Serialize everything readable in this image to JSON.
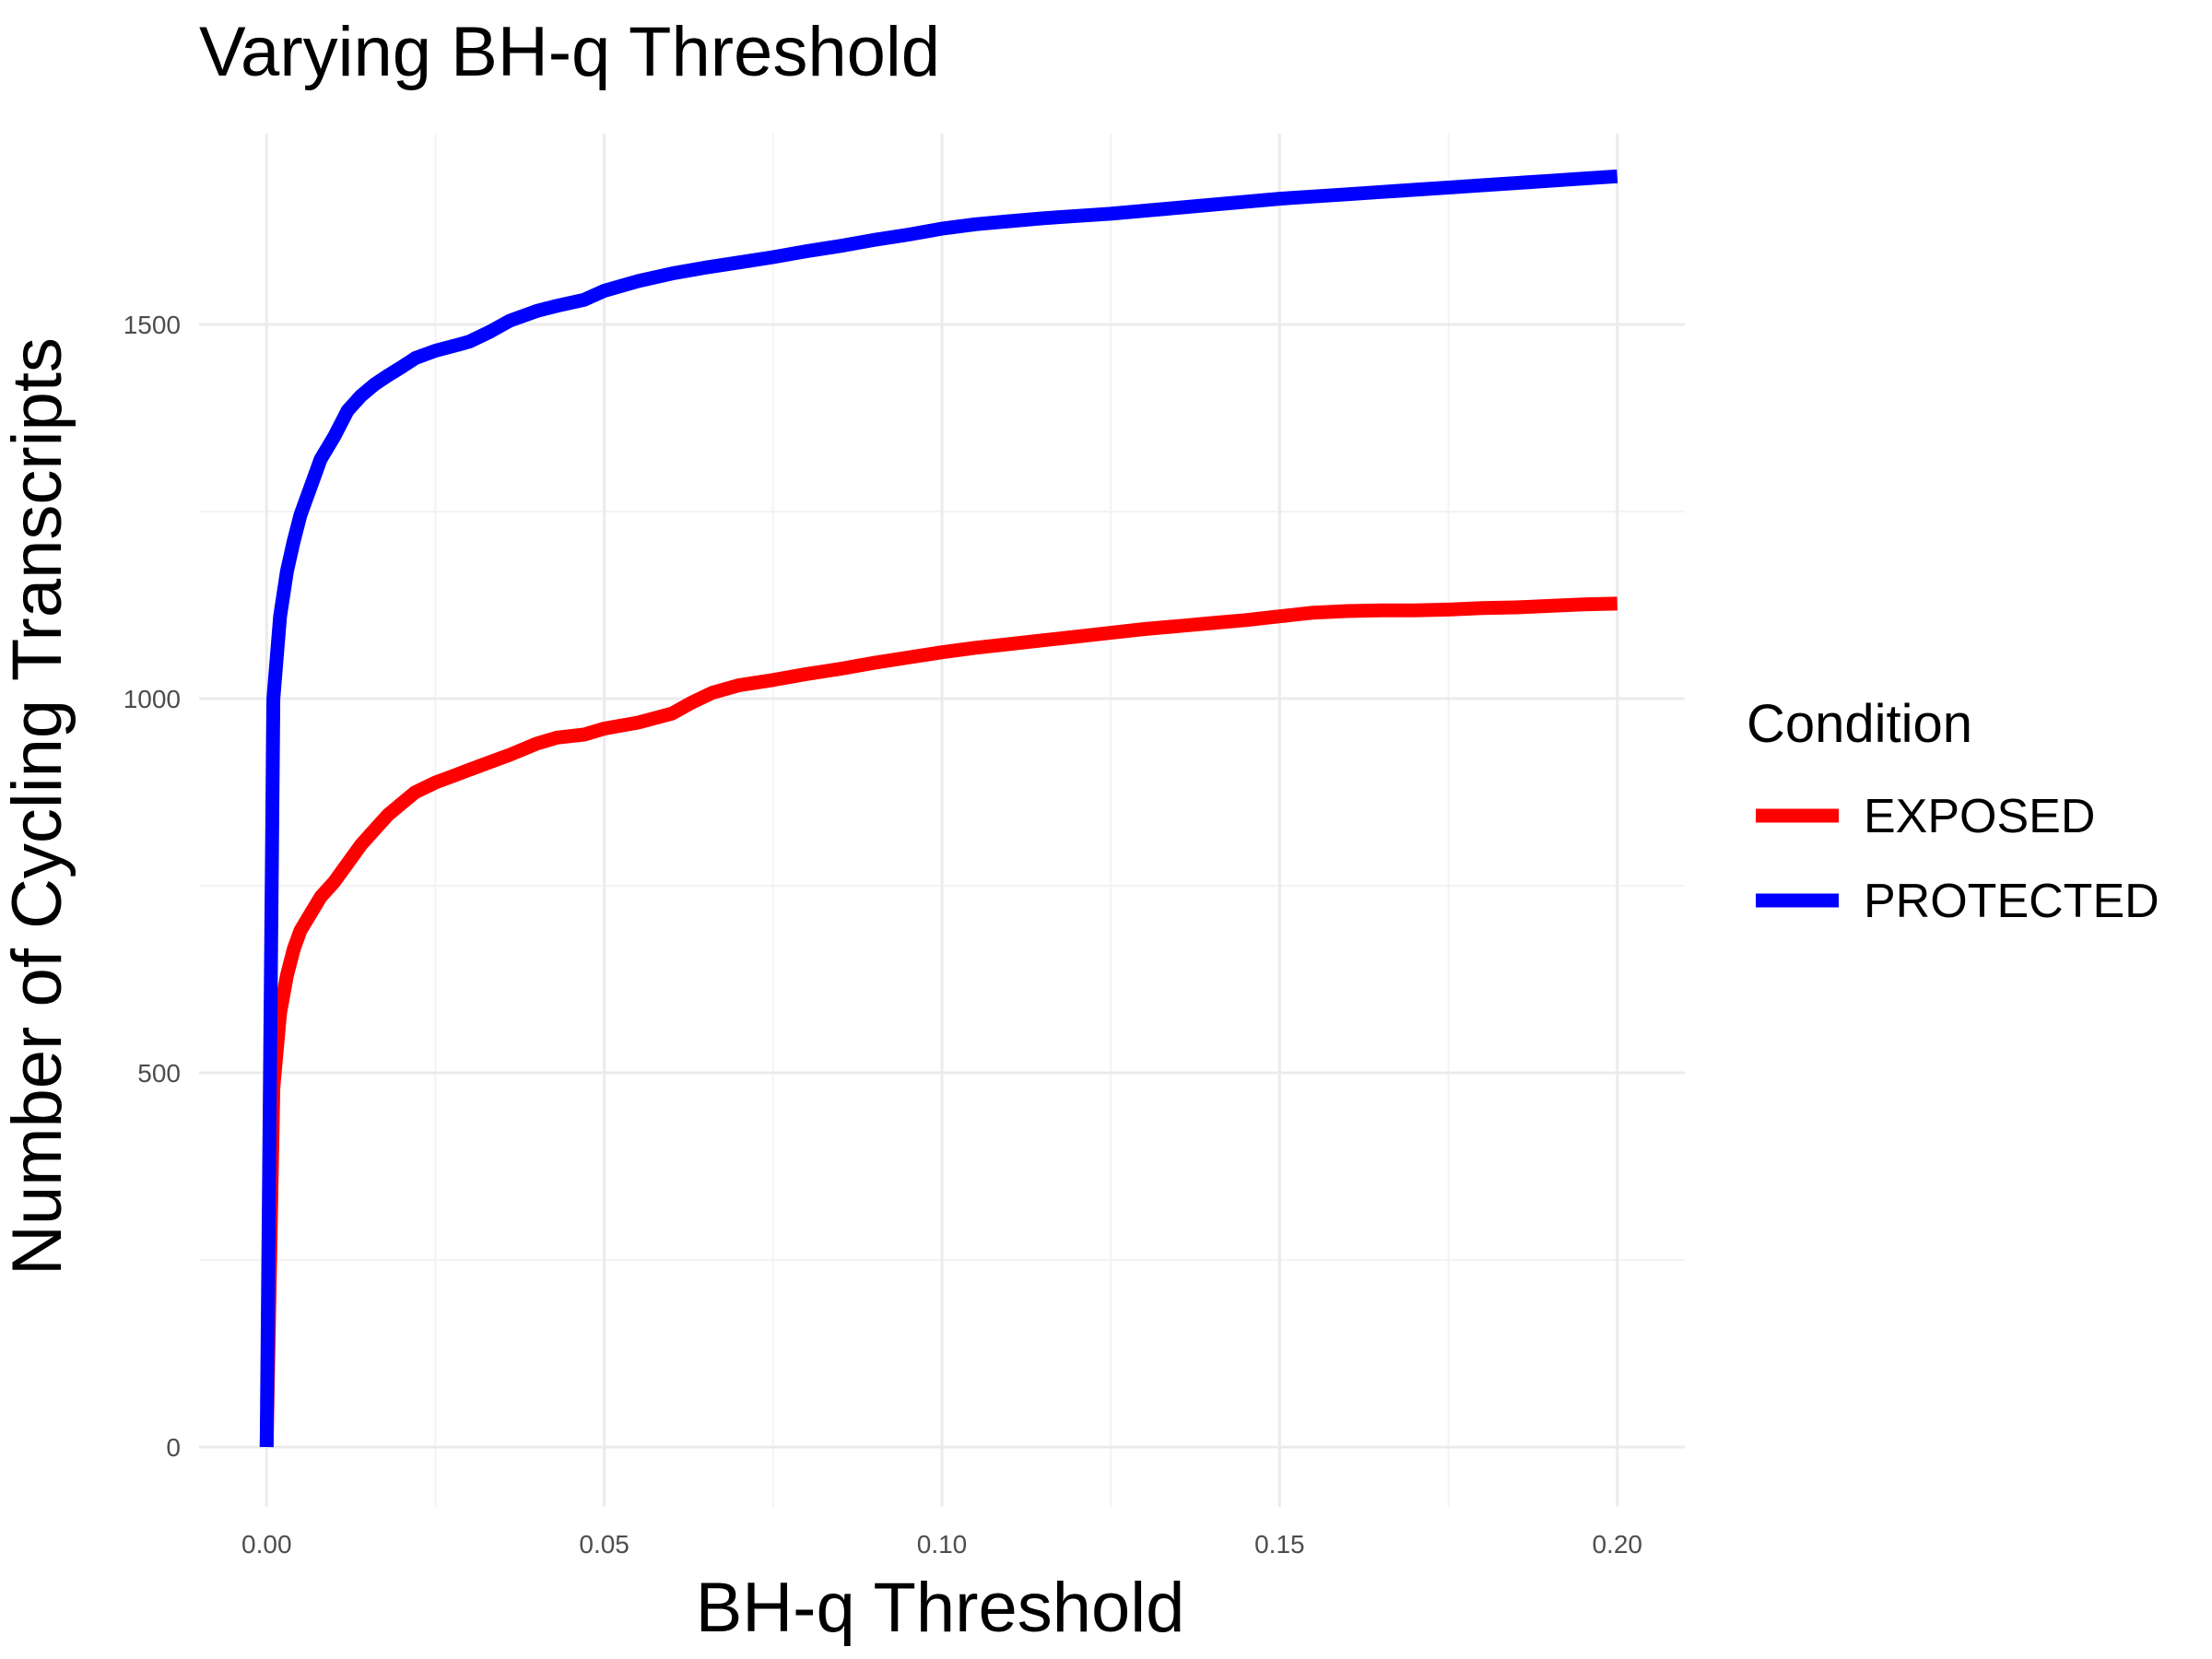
{
  "chart_data": {
    "type": "line",
    "title": "Varying BH-q Threshold",
    "xlabel": "BH-q Threshold",
    "ylabel": "Number of Cycling Transcripts",
    "xlim": [
      -0.01,
      0.21
    ],
    "ylim": [
      -80,
      1755
    ],
    "x_ticks": [
      0.0,
      0.05,
      0.1,
      0.15,
      0.2
    ],
    "x_tick_labels": [
      "0.00",
      "0.05",
      "0.10",
      "0.15",
      "0.20"
    ],
    "x_minor_ticks": [
      0.025,
      0.075,
      0.125,
      0.175
    ],
    "y_ticks": [
      0,
      500,
      1000,
      1500
    ],
    "y_tick_labels": [
      "0",
      "500",
      "1000",
      "1500"
    ],
    "y_minor_ticks": [
      250,
      750,
      1250
    ],
    "grid": true,
    "legend": {
      "title": "Condition",
      "position": "right"
    },
    "series": [
      {
        "name": "EXPOSED",
        "color": "#ff0000",
        "points": [
          [
            0.0,
            0
          ],
          [
            0.001,
            480
          ],
          [
            0.002,
            580
          ],
          [
            0.003,
            630
          ],
          [
            0.004,
            665
          ],
          [
            0.005,
            690
          ],
          [
            0.006,
            705
          ],
          [
            0.007,
            720
          ],
          [
            0.008,
            735
          ],
          [
            0.01,
            755
          ],
          [
            0.012,
            780
          ],
          [
            0.014,
            805
          ],
          [
            0.016,
            825
          ],
          [
            0.018,
            845
          ],
          [
            0.02,
            860
          ],
          [
            0.022,
            875
          ],
          [
            0.025,
            888
          ],
          [
            0.028,
            898
          ],
          [
            0.03,
            905
          ],
          [
            0.033,
            915
          ],
          [
            0.036,
            925
          ],
          [
            0.04,
            940
          ],
          [
            0.043,
            948
          ],
          [
            0.047,
            952
          ],
          [
            0.05,
            960
          ],
          [
            0.055,
            968
          ],
          [
            0.06,
            980
          ],
          [
            0.063,
            995
          ],
          [
            0.066,
            1008
          ],
          [
            0.07,
            1018
          ],
          [
            0.075,
            1025
          ],
          [
            0.08,
            1033
          ],
          [
            0.085,
            1040
          ],
          [
            0.09,
            1048
          ],
          [
            0.095,
            1055
          ],
          [
            0.1,
            1062
          ],
          [
            0.105,
            1068
          ],
          [
            0.11,
            1073
          ],
          [
            0.115,
            1078
          ],
          [
            0.12,
            1083
          ],
          [
            0.125,
            1088
          ],
          [
            0.13,
            1093
          ],
          [
            0.135,
            1097
          ],
          [
            0.14,
            1101
          ],
          [
            0.145,
            1105
          ],
          [
            0.15,
            1110
          ],
          [
            0.155,
            1115
          ],
          [
            0.16,
            1117
          ],
          [
            0.165,
            1118
          ],
          [
            0.17,
            1118
          ],
          [
            0.175,
            1119
          ],
          [
            0.18,
            1121
          ],
          [
            0.185,
            1122
          ],
          [
            0.19,
            1124
          ],
          [
            0.195,
            1126
          ],
          [
            0.2,
            1127
          ]
        ]
      },
      {
        "name": "PROTECTED",
        "color": "#0000ff",
        "points": [
          [
            0.0,
            0
          ],
          [
            0.001,
            1000
          ],
          [
            0.002,
            1110
          ],
          [
            0.003,
            1170
          ],
          [
            0.004,
            1210
          ],
          [
            0.005,
            1245
          ],
          [
            0.006,
            1270
          ],
          [
            0.007,
            1295
          ],
          [
            0.008,
            1320
          ],
          [
            0.01,
            1350
          ],
          [
            0.012,
            1385
          ],
          [
            0.014,
            1405
          ],
          [
            0.016,
            1420
          ],
          [
            0.018,
            1432
          ],
          [
            0.02,
            1443
          ],
          [
            0.022,
            1455
          ],
          [
            0.025,
            1465
          ],
          [
            0.028,
            1472
          ],
          [
            0.03,
            1477
          ],
          [
            0.033,
            1490
          ],
          [
            0.036,
            1505
          ],
          [
            0.04,
            1518
          ],
          [
            0.043,
            1525
          ],
          [
            0.047,
            1533
          ],
          [
            0.05,
            1545
          ],
          [
            0.055,
            1558
          ],
          [
            0.06,
            1568
          ],
          [
            0.065,
            1576
          ],
          [
            0.07,
            1583
          ],
          [
            0.075,
            1590
          ],
          [
            0.08,
            1598
          ],
          [
            0.085,
            1605
          ],
          [
            0.09,
            1613
          ],
          [
            0.095,
            1620
          ],
          [
            0.1,
            1628
          ],
          [
            0.105,
            1634
          ],
          [
            0.11,
            1638
          ],
          [
            0.115,
            1642
          ],
          [
            0.12,
            1645
          ],
          [
            0.125,
            1648
          ],
          [
            0.13,
            1652
          ],
          [
            0.135,
            1656
          ],
          [
            0.14,
            1660
          ],
          [
            0.145,
            1664
          ],
          [
            0.15,
            1668
          ],
          [
            0.155,
            1671
          ],
          [
            0.16,
            1674
          ],
          [
            0.165,
            1677
          ],
          [
            0.17,
            1680
          ],
          [
            0.175,
            1683
          ],
          [
            0.18,
            1686
          ],
          [
            0.185,
            1689
          ],
          [
            0.19,
            1692
          ],
          [
            0.195,
            1695
          ],
          [
            0.2,
            1698
          ]
        ]
      }
    ]
  }
}
